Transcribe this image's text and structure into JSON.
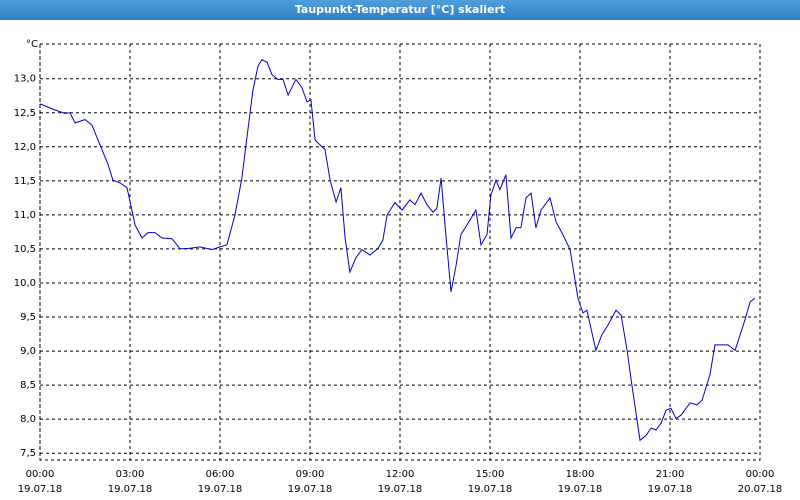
{
  "chart_data": {
    "type": "line",
    "title": "Taupunkt-Temperatur [°C] skaliert",
    "y_label": "°C",
    "color": "#0000cc",
    "grid": true,
    "xlim": [
      0,
      24
    ],
    "ylim": [
      7.4,
      13.51
    ],
    "xticks": [
      {
        "value": 0,
        "label": "00:00",
        "date": "19.07.18"
      },
      {
        "value": 3,
        "label": "03:00",
        "date": "19.07.18"
      },
      {
        "value": 6,
        "label": "06:00",
        "date": "19.07.18"
      },
      {
        "value": 9,
        "label": "09:00",
        "date": "19.07.18"
      },
      {
        "value": 12,
        "label": "12:00",
        "date": "19.07.18"
      },
      {
        "value": 15,
        "label": "15:00",
        "date": "19.07.18"
      },
      {
        "value": 18,
        "label": "18:00",
        "date": "19.07.18"
      },
      {
        "value": 21,
        "label": "21:00",
        "date": "19.07.18"
      },
      {
        "value": 24,
        "label": "00:00",
        "date": "20.07.18"
      }
    ],
    "yticks": [
      {
        "value": 7.5,
        "label": "7,5"
      },
      {
        "value": 8,
        "label": "8,0"
      },
      {
        "value": 8.5,
        "label": "8,5"
      },
      {
        "value": 9,
        "label": "9,0"
      },
      {
        "value": 9.5,
        "label": "9,5"
      },
      {
        "value": 10,
        "label": "10,0"
      },
      {
        "value": 10.5,
        "label": "10,5"
      },
      {
        "value": 11,
        "label": "11,0"
      },
      {
        "value": 11.5,
        "label": "11,5"
      },
      {
        "value": 12,
        "label": "12,0"
      },
      {
        "value": 12.5,
        "label": "12,5"
      },
      {
        "value": 13,
        "label": "13,0"
      }
    ],
    "x": [
      0,
      0.5,
      0.83,
      1.0,
      1.17,
      1.5,
      1.73,
      2.0,
      2.27,
      2.43,
      2.67,
      2.9,
      3.17,
      3.4,
      3.6,
      3.83,
      4.07,
      4.4,
      4.67,
      5.0,
      5.33,
      5.73,
      6.0,
      6.23,
      6.5,
      6.73,
      6.93,
      7.1,
      7.27,
      7.4,
      7.57,
      7.73,
      7.93,
      8.1,
      8.27,
      8.53,
      8.73,
      8.9,
      9.03,
      9.17,
      9.33,
      9.5,
      9.67,
      9.87,
      10.03,
      10.17,
      10.33,
      10.53,
      10.73,
      11.0,
      11.27,
      11.43,
      11.57,
      11.83,
      12.07,
      12.33,
      12.5,
      12.7,
      12.9,
      13.1,
      13.23,
      13.37,
      13.5,
      13.7,
      13.87,
      14.03,
      14.23,
      14.53,
      14.7,
      14.9,
      15.03,
      15.2,
      15.33,
      15.53,
      15.7,
      15.87,
      16.03,
      16.2,
      16.37,
      16.53,
      16.7,
      17.0,
      17.2,
      17.43,
      17.67,
      17.93,
      18.1,
      18.23,
      18.53,
      18.73,
      18.93,
      19.2,
      19.37,
      19.57,
      19.73,
      20.0,
      20.2,
      20.37,
      20.53,
      20.7,
      20.87,
      21.03,
      21.2,
      21.37,
      21.67,
      21.9,
      22.07,
      22.33,
      22.5,
      22.93,
      23.17,
      23.5,
      23.67,
      23.83
    ],
    "values": [
      12.63,
      12.54,
      12.49,
      12.5,
      12.35,
      12.4,
      12.32,
      12.03,
      11.74,
      11.51,
      11.47,
      11.4,
      10.85,
      10.66,
      10.74,
      10.74,
      10.66,
      10.65,
      10.5,
      10.51,
      10.53,
      10.49,
      10.53,
      10.56,
      11.0,
      11.54,
      12.25,
      12.84,
      13.19,
      13.28,
      13.24,
      13.06,
      12.99,
      12.99,
      12.76,
      12.99,
      12.87,
      12.66,
      12.69,
      12.1,
      12.03,
      11.96,
      11.51,
      11.19,
      11.4,
      10.66,
      10.16,
      10.37,
      10.49,
      10.41,
      10.51,
      10.63,
      11.0,
      11.18,
      11.07,
      11.22,
      11.15,
      11.32,
      11.15,
      11.04,
      11.1,
      11.54,
      10.85,
      9.87,
      10.26,
      10.71,
      10.85,
      11.07,
      10.56,
      10.71,
      11.29,
      11.51,
      11.37,
      11.59,
      10.66,
      10.81,
      10.81,
      11.25,
      11.32,
      10.81,
      11.07,
      11.25,
      10.9,
      10.71,
      10.49,
      9.78,
      9.56,
      9.6,
      9.01,
      9.24,
      9.38,
      9.6,
      9.53,
      9.01,
      8.5,
      7.69,
      7.76,
      7.87,
      7.84,
      7.94,
      8.13,
      8.16,
      8.01,
      8.06,
      8.24,
      8.21,
      8.28,
      8.65,
      9.09,
      9.09,
      9.01,
      9.46,
      9.72,
      9.78
    ]
  }
}
